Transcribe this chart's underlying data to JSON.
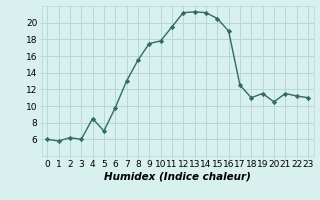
{
  "x": [
    0,
    1,
    2,
    3,
    4,
    5,
    6,
    7,
    8,
    9,
    10,
    11,
    12,
    13,
    14,
    15,
    16,
    17,
    18,
    19,
    20,
    21,
    22,
    23
  ],
  "y": [
    6,
    5.8,
    6.2,
    6,
    8.5,
    7,
    9.8,
    13,
    15.5,
    17.5,
    17.8,
    19.5,
    21.2,
    21.3,
    21.2,
    20.5,
    19,
    12.5,
    11,
    11.5,
    10.5,
    11.5,
    11.2,
    11
  ],
  "line_color": "#336b5e",
  "marker": "D",
  "marker_size": 2.2,
  "bg_color": "#d8f0ee",
  "grid_color": "#b8d8d4",
  "xlabel": "Humidex (Indice chaleur)",
  "ylim": [
    4,
    22
  ],
  "xlim": [
    -0.5,
    23.5
  ],
  "yticks": [
    6,
    8,
    10,
    12,
    14,
    16,
    18,
    20
  ],
  "xticks": [
    0,
    1,
    2,
    3,
    4,
    5,
    6,
    7,
    8,
    9,
    10,
    11,
    12,
    13,
    14,
    15,
    16,
    17,
    18,
    19,
    20,
    21,
    22,
    23
  ],
  "xtick_labels": [
    "0",
    "1",
    "2",
    "3",
    "4",
    "5",
    "6",
    "7",
    "8",
    "9",
    "10",
    "11",
    "12",
    "13",
    "14",
    "15",
    "16",
    "17",
    "18",
    "19",
    "20",
    "21",
    "22",
    "23"
  ],
  "line_width": 1.0,
  "tick_fontsize": 6.5,
  "xlabel_fontsize": 7.5
}
